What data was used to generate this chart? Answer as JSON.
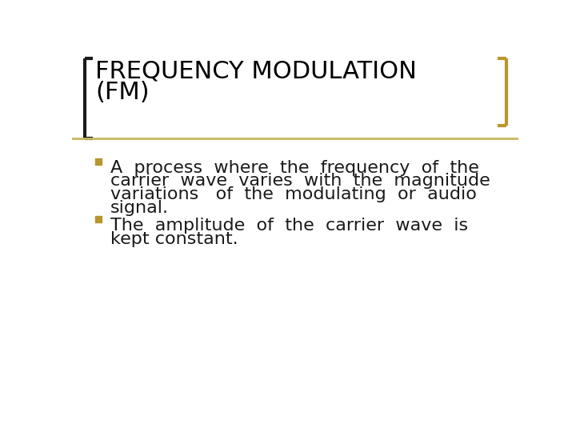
{
  "background_color": "#ffffff",
  "title_line1": "FREQUENCY MODULATION",
  "title_line2": "(FM)",
  "title_color": "#000000",
  "title_fontsize": 22,
  "bracket_color_left": "#1a1a1a",
  "bracket_color_right": "#b8962e",
  "header_line_color": "#c8b860",
  "bullet_color": "#b8962e",
  "bullet_text_color": "#1a1a1a",
  "bullet_fontsize": 16,
  "bullet1_lines": [
    "A  process  where  the  frequency  of  the",
    "carrier  wave  varies  with  the  magnitude",
    "variations   of  the  modulating  or  audio",
    "signal."
  ],
  "bullet2_lines": [
    "The  amplitude  of  the  carrier  wave  is",
    "kept constant."
  ]
}
